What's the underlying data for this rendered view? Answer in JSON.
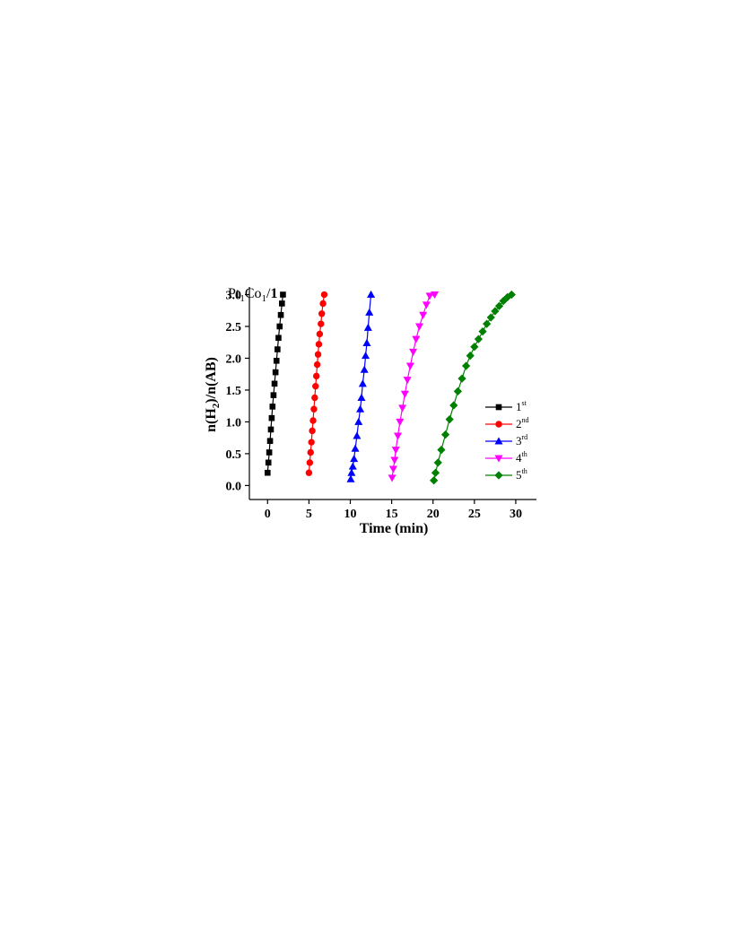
{
  "chart_data": {
    "type": "line",
    "panel_label": {
      "base": "Pt",
      "sub1": "1",
      "mid": "Co",
      "sub2": "1",
      "tail": "/",
      "bold": "1"
    },
    "xlabel": "Time (min)",
    "ylabel": {
      "pre": "n(H",
      "sub": "2",
      "post": ")/n(AB)"
    },
    "xlim": [
      -2.2,
      32.5
    ],
    "ylim": [
      -0.22,
      3.12
    ],
    "xticks": [
      0,
      5,
      10,
      15,
      20,
      25,
      30
    ],
    "yticks": [
      0.0,
      0.5,
      1.0,
      1.5,
      2.0,
      2.5,
      3.0
    ],
    "ytick_labels": [
      "0.0",
      "0.5",
      "1.0",
      "1.5",
      "2.0",
      "2.5",
      "3.0"
    ],
    "legend_position": "right",
    "series": [
      {
        "name": "1",
        "sup": "st",
        "color": "#000000",
        "marker": "square",
        "points": [
          [
            0.0,
            0.2
          ],
          [
            0.1,
            0.36
          ],
          [
            0.2,
            0.52
          ],
          [
            0.3,
            0.7
          ],
          [
            0.4,
            0.88
          ],
          [
            0.5,
            1.06
          ],
          [
            0.6,
            1.24
          ],
          [
            0.72,
            1.42
          ],
          [
            0.84,
            1.6
          ],
          [
            0.96,
            1.78
          ],
          [
            1.08,
            1.96
          ],
          [
            1.2,
            2.14
          ],
          [
            1.32,
            2.32
          ],
          [
            1.46,
            2.5
          ],
          [
            1.6,
            2.68
          ],
          [
            1.74,
            2.86
          ],
          [
            1.86,
            3.0
          ]
        ]
      },
      {
        "name": "2",
        "sup": "nd",
        "color": "#ff0000",
        "marker": "circle",
        "points": [
          [
            5.0,
            0.2
          ],
          [
            5.1,
            0.36
          ],
          [
            5.2,
            0.52
          ],
          [
            5.3,
            0.68
          ],
          [
            5.4,
            0.86
          ],
          [
            5.5,
            1.02
          ],
          [
            5.6,
            1.2
          ],
          [
            5.7,
            1.38
          ],
          [
            5.8,
            1.56
          ],
          [
            5.9,
            1.72
          ],
          [
            6.0,
            1.9
          ],
          [
            6.1,
            2.06
          ],
          [
            6.2,
            2.22
          ],
          [
            6.3,
            2.38
          ],
          [
            6.45,
            2.54
          ],
          [
            6.55,
            2.7
          ],
          [
            6.7,
            2.86
          ],
          [
            6.85,
            3.0
          ]
        ]
      },
      {
        "name": "3",
        "sup": "rd",
        "color": "#0000ff",
        "marker": "triangle-up",
        "points": [
          [
            10.05,
            0.1
          ],
          [
            10.15,
            0.2
          ],
          [
            10.3,
            0.3
          ],
          [
            10.45,
            0.42
          ],
          [
            10.6,
            0.58
          ],
          [
            10.8,
            0.78
          ],
          [
            11.0,
            1.0
          ],
          [
            11.2,
            1.2
          ],
          [
            11.35,
            1.38
          ],
          [
            11.5,
            1.6
          ],
          [
            11.7,
            1.82
          ],
          [
            11.85,
            2.04
          ],
          [
            12.0,
            2.24
          ],
          [
            12.15,
            2.48
          ],
          [
            12.3,
            2.72
          ],
          [
            12.5,
            3.0
          ]
        ]
      },
      {
        "name": "4",
        "sup": "th",
        "color": "#ff00ff",
        "marker": "triangle-down",
        "points": [
          [
            15.05,
            0.12
          ],
          [
            15.2,
            0.26
          ],
          [
            15.35,
            0.4
          ],
          [
            15.5,
            0.56
          ],
          [
            15.75,
            0.78
          ],
          [
            16.0,
            1.0
          ],
          [
            16.3,
            1.22
          ],
          [
            16.6,
            1.44
          ],
          [
            16.9,
            1.66
          ],
          [
            17.25,
            1.88
          ],
          [
            17.6,
            2.1
          ],
          [
            17.95,
            2.3
          ],
          [
            18.35,
            2.5
          ],
          [
            18.8,
            2.68
          ],
          [
            19.2,
            2.84
          ],
          [
            19.6,
            2.98
          ],
          [
            20.2,
            3.0
          ]
        ]
      },
      {
        "name": "5",
        "sup": "th",
        "color": "#008000",
        "marker": "diamond",
        "points": [
          [
            20.1,
            0.08
          ],
          [
            20.3,
            0.2
          ],
          [
            20.6,
            0.36
          ],
          [
            21.0,
            0.56
          ],
          [
            21.5,
            0.8
          ],
          [
            22.0,
            1.04
          ],
          [
            22.5,
            1.26
          ],
          [
            23.0,
            1.48
          ],
          [
            23.5,
            1.68
          ],
          [
            24.0,
            1.88
          ],
          [
            24.5,
            2.04
          ],
          [
            25.0,
            2.18
          ],
          [
            25.5,
            2.3
          ],
          [
            26.0,
            2.42
          ],
          [
            26.5,
            2.54
          ],
          [
            27.0,
            2.64
          ],
          [
            27.5,
            2.74
          ],
          [
            28.0,
            2.82
          ],
          [
            28.5,
            2.9
          ],
          [
            29.0,
            2.96
          ],
          [
            29.5,
            3.0
          ]
        ]
      }
    ]
  }
}
